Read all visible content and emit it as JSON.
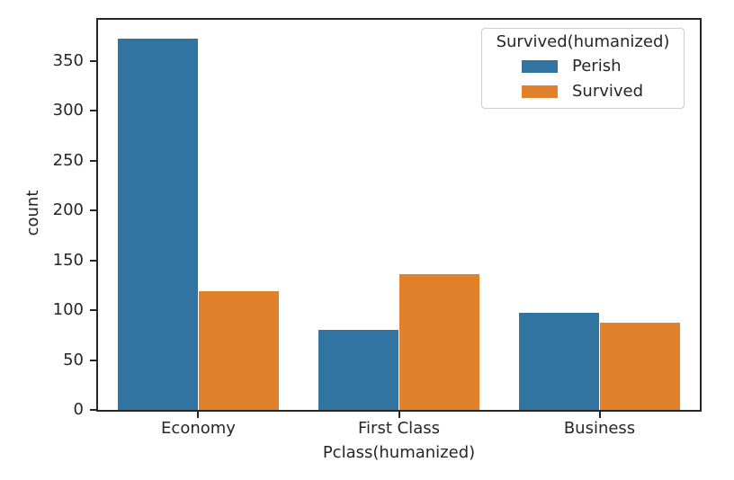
{
  "chart_data": {
    "type": "bar",
    "title": "",
    "xlabel": "Pclass(humanized)",
    "ylabel": "count",
    "categories": [
      "Economy",
      "First Class",
      "Business"
    ],
    "series": [
      {
        "name": "Perish",
        "color": "#3274a1",
        "values": [
          372,
          80,
          97
        ]
      },
      {
        "name": "Survived",
        "color": "#e1812c",
        "values": [
          119,
          136,
          87
        ]
      }
    ],
    "legend": {
      "title": "Survived(humanized)",
      "position": "upper right"
    },
    "ylim": [
      0,
      391
    ],
    "yticks": [
      0,
      50,
      100,
      150,
      200,
      250,
      300,
      350
    ],
    "grid": false,
    "group_width": 0.8,
    "bar_width": 0.4
  },
  "style": {
    "background": "#ffffff",
    "axis_color": "#262626",
    "text_color": "#262626",
    "legend_border_color": "#cccccc",
    "perish_color": "#3274a1",
    "survived_color": "#e1812c"
  }
}
